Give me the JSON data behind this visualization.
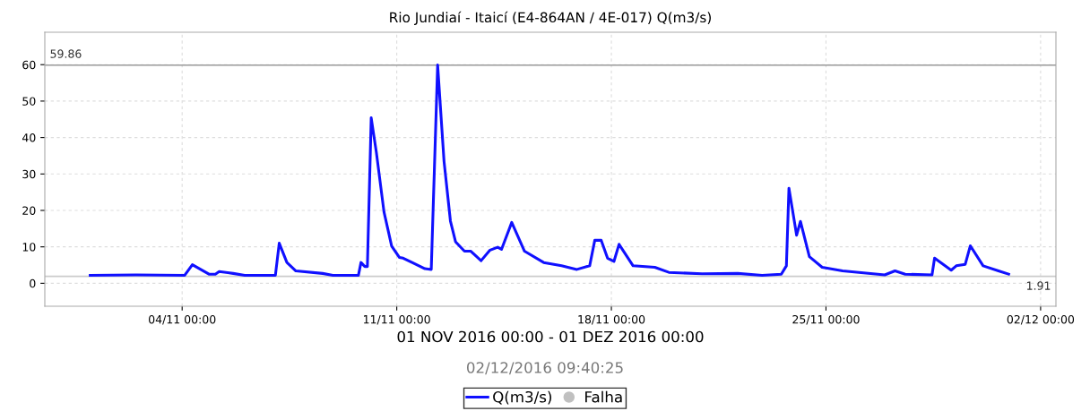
{
  "chart_data": {
    "type": "line",
    "title": "Rio Jundiaí - Itaicí (E4-864AN / 4E-017) Q(m3/s)",
    "xlabel": "01 NOV 2016 00:00 - 01 DEZ 2016 00:00",
    "annotations": [
      "02/12/2016 09:40:25"
    ],
    "x": [
      "2016-11-01T00:00",
      "2016-11-02T12:00",
      "2016-11-04T02:00",
      "2016-11-04T08:00",
      "2016-11-04T21:00",
      "2016-11-05T02:00",
      "2016-11-05T05:00",
      "2016-11-05T16:00",
      "2016-11-06T01:00",
      "2016-11-07T01:00",
      "2016-11-07T04:00",
      "2016-11-07T10:00",
      "2016-11-07T17:00",
      "2016-11-08T14:00",
      "2016-11-08T22:00",
      "2016-11-09T18:00",
      "2016-11-09T20:00",
      "2016-11-09T23:00",
      "2016-11-10T01:00",
      "2016-11-10T04:00",
      "2016-11-10T08:00",
      "2016-11-10T14:00",
      "2016-11-10T20:00",
      "2016-11-11T02:00",
      "2016-11-11T05:00",
      "2016-11-11T12:00",
      "2016-11-11T22:00",
      "2016-11-12T03:00",
      "2016-11-12T08:00",
      "2016-11-12T13:00",
      "2016-11-12T18:00",
      "2016-11-12T22:00",
      "2016-11-13T05:00",
      "2016-11-13T10:00",
      "2016-11-13T18:00",
      "2016-11-14T01:00",
      "2016-11-14T07:00",
      "2016-11-14T10:00",
      "2016-11-14T18:00",
      "2016-11-15T04:00",
      "2016-11-15T19:00",
      "2016-11-16T09:00",
      "2016-11-16T21:00",
      "2016-11-17T07:00",
      "2016-11-17T11:00",
      "2016-11-17T16:00",
      "2016-11-17T21:00",
      "2016-11-18T02:00",
      "2016-11-18T06:00",
      "2016-11-18T17:00",
      "2016-11-19T10:00",
      "2016-11-19T21:00",
      "2016-11-20T23:00",
      "2016-11-22T03:00",
      "2016-11-22T22:00",
      "2016-11-23T13:00",
      "2016-11-23T17:00",
      "2016-11-23T19:00",
      "2016-11-24T01:00",
      "2016-11-24T04:00",
      "2016-11-24T11:00",
      "2016-11-24T21:00",
      "2016-11-25T13:00",
      "2016-11-26T22:00",
      "2016-11-27T06:00",
      "2016-11-27T14:00",
      "2016-11-28T11:00",
      "2016-11-28T13:00",
      "2016-11-29T02:00",
      "2016-11-29T06:00",
      "2016-11-29T13:00",
      "2016-11-29T17:00",
      "2016-11-30T03:00",
      "2016-11-30T15:00",
      "2016-11-30T23:00"
    ],
    "series": [
      {
        "name": "Q(m3/s)",
        "color": "#1010ff",
        "values": [
          2.2,
          2.3,
          2.2,
          5.1,
          2.5,
          2.5,
          3.2,
          2.7,
          2.2,
          2.2,
          11.0,
          5.7,
          3.4,
          2.7,
          2.2,
          2.2,
          5.7,
          4.6,
          4.6,
          45.4,
          36.0,
          19.6,
          10.2,
          7.1,
          6.9,
          5.7,
          4.0,
          3.8,
          59.9,
          33.5,
          17.1,
          11.4,
          8.8,
          8.8,
          6.2,
          9.1,
          9.9,
          9.3,
          16.7,
          8.8,
          5.7,
          4.8,
          3.8,
          4.8,
          11.8,
          11.8,
          6.9,
          6.0,
          10.7,
          4.8,
          4.4,
          3.0,
          2.6,
          2.7,
          2.2,
          2.5,
          4.8,
          26.1,
          13.2,
          17.0,
          7.3,
          4.4,
          3.4,
          2.3,
          3.4,
          2.5,
          2.3,
          6.9,
          3.6,
          4.8,
          5.2,
          10.3,
          4.8,
          3.4,
          2.5
        ]
      },
      {
        "name": "Falha",
        "type": "scatter",
        "color": "#c0c0c0",
        "values": [
          null,
          null,
          null,
          null,
          null,
          null,
          null,
          null,
          null,
          null,
          null,
          null,
          null,
          null,
          null,
          null,
          null,
          null,
          null,
          null,
          null,
          null,
          null,
          null,
          null,
          null,
          null,
          null,
          null,
          null,
          null,
          null,
          null,
          null,
          null,
          null,
          null,
          null,
          null,
          null,
          null,
          null,
          null,
          null,
          null,
          null,
          null,
          null,
          null,
          null,
          null,
          null,
          null,
          null,
          null,
          null,
          null,
          null,
          null,
          null,
          null,
          null,
          null,
          null,
          null,
          null,
          null,
          null,
          null,
          null,
          null,
          null,
          null,
          null,
          null
        ]
      }
    ],
    "xlim": [
      "2016-10-30T12:30",
      "2016-12-02T12:00"
    ],
    "xticks": [
      {
        "value": "2016-11-04",
        "label": "04/11 00:00"
      },
      {
        "value": "2016-11-11",
        "label": "11/11 00:00"
      },
      {
        "value": "2016-11-18",
        "label": "18/11 00:00"
      },
      {
        "value": "2016-11-25",
        "label": "25/11 00:00"
      },
      {
        "value": "2016-12-02",
        "label": "02/12 00:00"
      }
    ],
    "ylim": [
      -6.3,
      68.9
    ],
    "yticks": [
      0,
      10,
      20,
      30,
      40,
      50,
      60
    ],
    "ref_lines": [
      {
        "axis": "y",
        "value": 59.86,
        "label": "59.86",
        "color": "#999999"
      },
      {
        "axis": "y",
        "value": 1.91,
        "label": "1.91",
        "color": "#cccccc"
      }
    ],
    "grid": true,
    "legend": "bottom",
    "marker": "none",
    "line_style": "solid"
  }
}
